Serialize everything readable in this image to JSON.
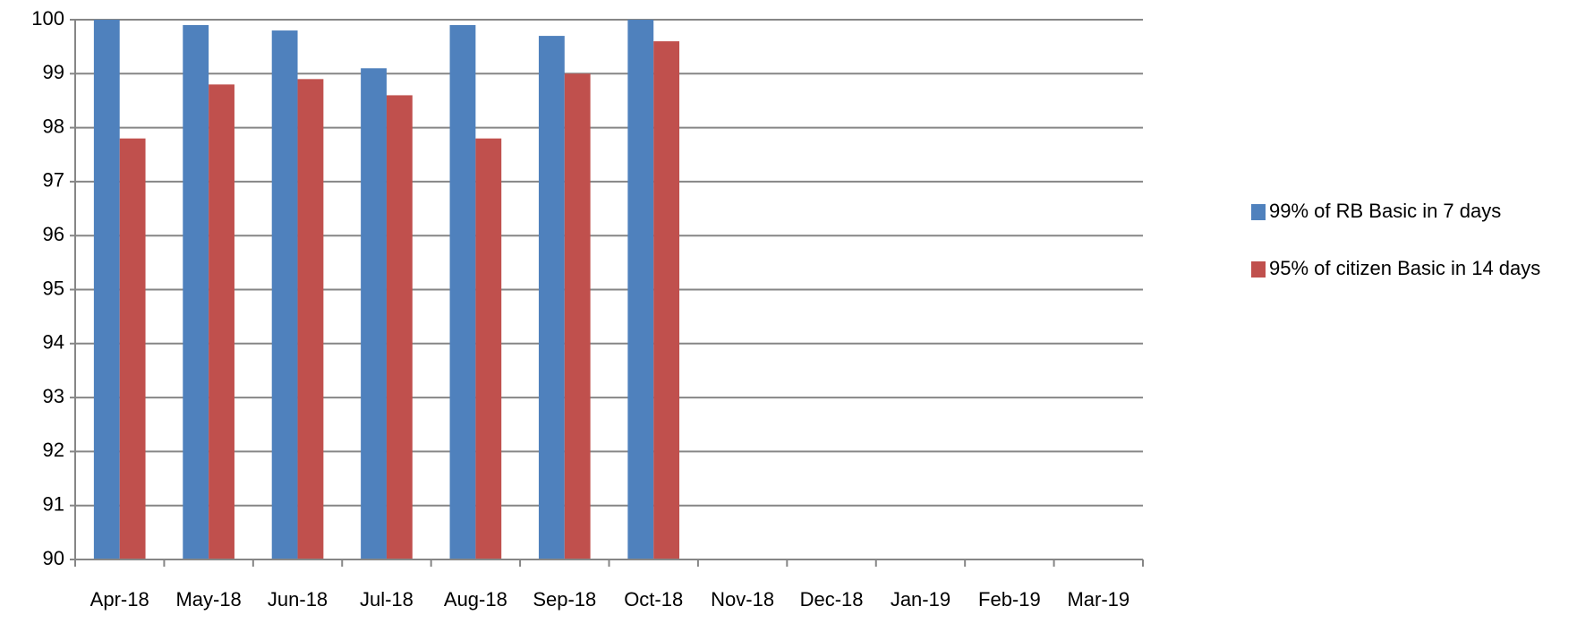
{
  "chart_data": {
    "type": "bar",
    "categories": [
      "Apr-18",
      "May-18",
      "Jun-18",
      "Jul-18",
      "Aug-18",
      "Sep-18",
      "Oct-18",
      "Nov-18",
      "Dec-18",
      "Jan-19",
      "Feb-19",
      "Mar-19"
    ],
    "series": [
      {
        "name": "99% of RB Basic in 7 days",
        "color": "#4f81bd",
        "values": [
          100,
          99.9,
          99.8,
          99.1,
          99.9,
          99.7,
          100,
          null,
          null,
          null,
          null,
          null
        ]
      },
      {
        "name": "95% of citizen Basic in 14 days",
        "color": "#c0504d",
        "values": [
          97.8,
          98.8,
          98.9,
          98.6,
          97.8,
          99.0,
          99.6,
          null,
          null,
          null,
          null,
          null
        ]
      }
    ],
    "ylim": [
      90,
      100
    ],
    "yticks": [
      90,
      91,
      92,
      93,
      94,
      95,
      96,
      97,
      98,
      99,
      100
    ],
    "grid": true,
    "legend": "right"
  }
}
